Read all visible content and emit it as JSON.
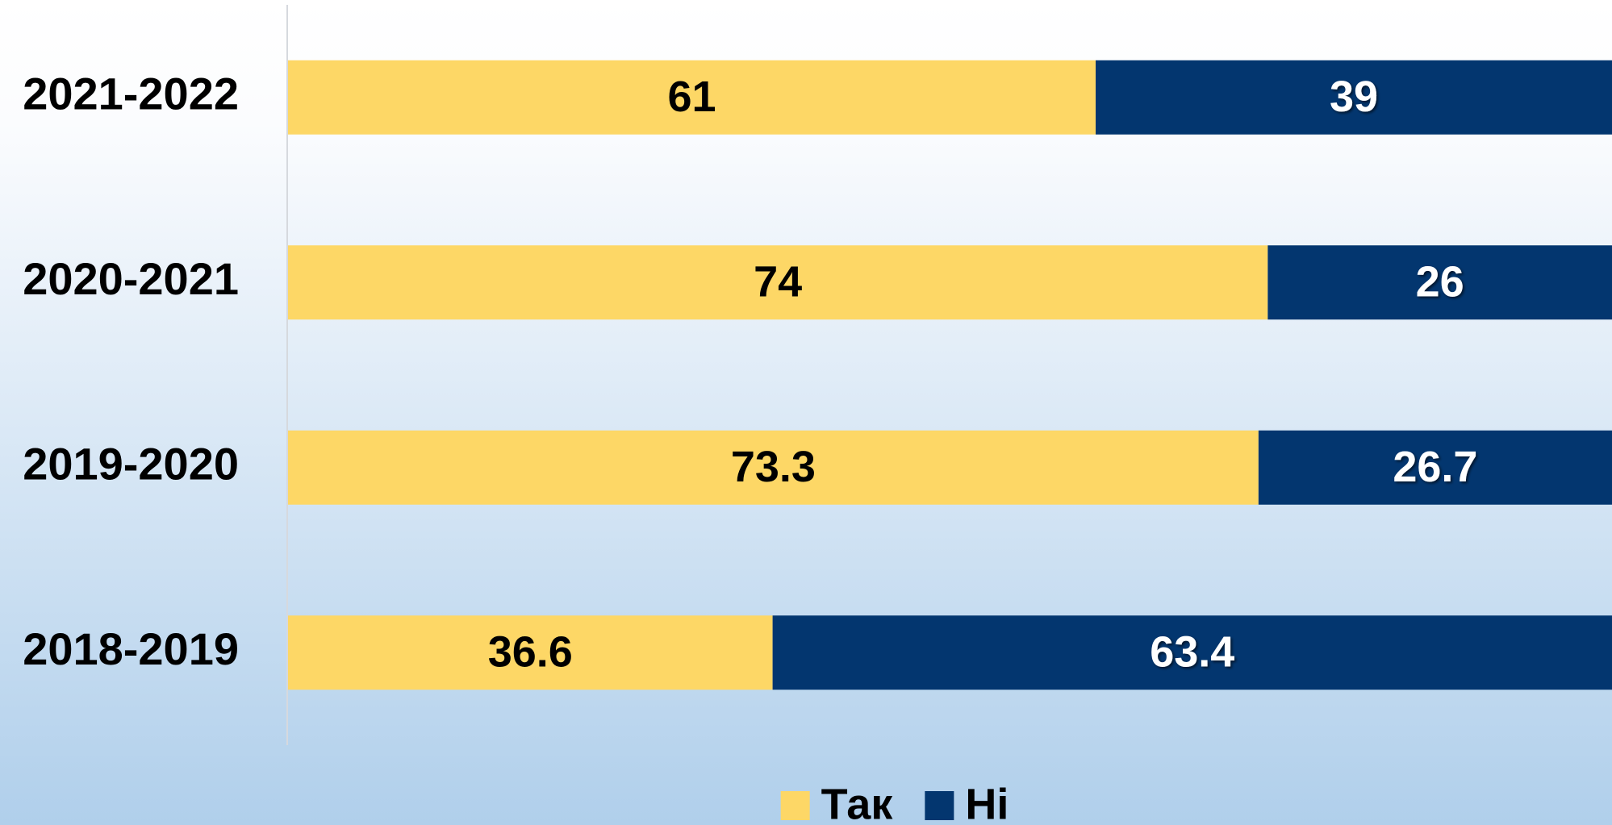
{
  "chart_data": {
    "type": "stacked-bar",
    "orientation": "horizontal",
    "categories": [
      "2021-2022",
      "2020-2021",
      "2019-2020",
      "2018-2019"
    ],
    "series": [
      {
        "name": "Так",
        "color": "#FDD766",
        "values": [
          61,
          74,
          73.3,
          36.6
        ]
      },
      {
        "name": "Ні",
        "color": "#03366F",
        "values": [
          39,
          26,
          26.7,
          63.4
        ]
      }
    ],
    "xlim": [
      0,
      100
    ],
    "legend": "bottom"
  }
}
